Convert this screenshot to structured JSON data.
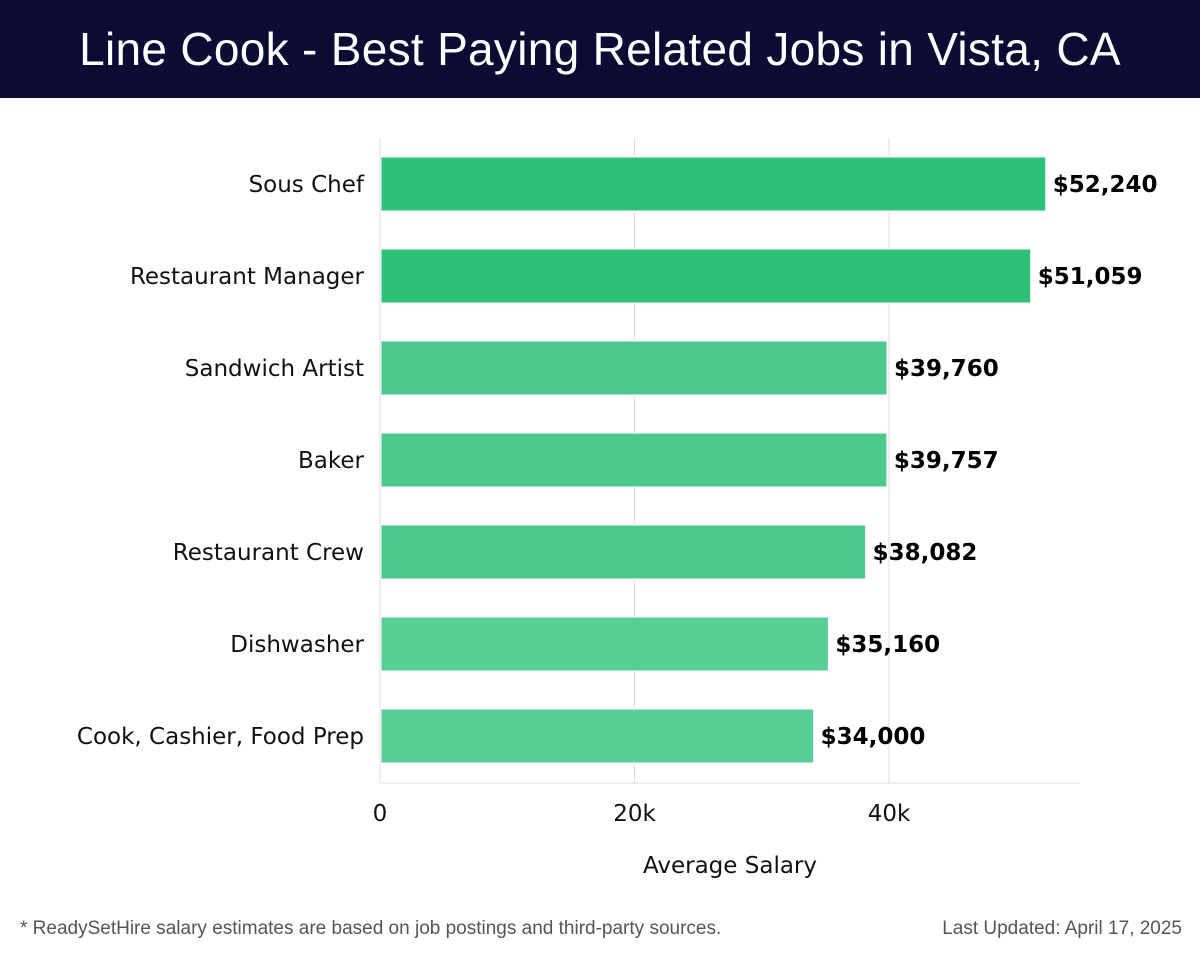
{
  "header": {
    "title": "Line Cook - Best Paying Related Jobs in Vista, CA"
  },
  "footer": {
    "note": "* ReadySetHire salary estimates are based on job postings and third-party sources.",
    "last_updated": "Last Updated: April 17, 2025"
  },
  "colors": {
    "title_bg": "#0b0b33",
    "bar_top": "#2ebf78",
    "bar_rest": "#4cc98c",
    "bar_light": "#58cd94",
    "grid": "#dddddd",
    "text": "#111111"
  },
  "chart_data": {
    "type": "bar",
    "orientation": "horizontal",
    "categories": [
      "Sous Chef",
      "Restaurant Manager",
      "Sandwich Artist",
      "Baker",
      "Restaurant Crew",
      "Dishwasher",
      "Cook, Cashier, Food Prep"
    ],
    "values": [
      52240,
      51059,
      39760,
      39757,
      38082,
      35160,
      34000
    ],
    "value_labels": [
      "$52,240",
      "$51,059",
      "$39,760",
      "$39,757",
      "$38,082",
      "$35,160",
      "$34,000"
    ],
    "xlabel": "Average Salary",
    "ylabel": "",
    "xlim": [
      0,
      55000
    ],
    "ticks": [
      0,
      20000,
      40000
    ],
    "tick_labels": [
      "0",
      "20k",
      "40k"
    ],
    "grid": true
  }
}
